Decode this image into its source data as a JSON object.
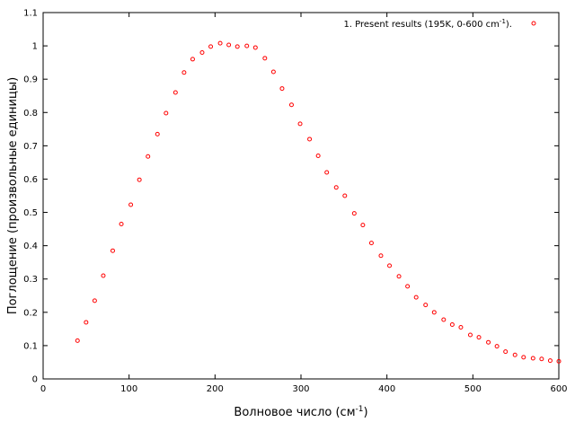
{
  "chart_data": {
    "type": "scatter",
    "title": "",
    "xlabel": "Волновое число (см",
    "xlabel_sup": "-1",
    "xlabel_close": ")",
    "ylabel": "Поглощение (произвольные единицы)",
    "xlim": [
      0,
      600
    ],
    "ylim": [
      0,
      1.1
    ],
    "xticks": [
      0,
      100,
      200,
      300,
      400,
      500,
      600
    ],
    "yticks": [
      0,
      0.1,
      0.2,
      0.3,
      0.4,
      0.5,
      0.6,
      0.7,
      0.8,
      0.9,
      1,
      1.1
    ],
    "grid": false,
    "legend_position": "top-right",
    "series": [
      {
        "name": "1. Present results (195K, 0-600 cm",
        "name_sup": "-1",
        "name_close": ").",
        "color": "#ff0000",
        "marker": "circle",
        "x": [
          40,
          50,
          60,
          70,
          81,
          91,
          102,
          112,
          122,
          133,
          143,
          154,
          164,
          174,
          185,
          195,
          206,
          216,
          226,
          237,
          247,
          258,
          268,
          278,
          289,
          299,
          310,
          320,
          330,
          341,
          351,
          362,
          372,
          382,
          393,
          403,
          414,
          424,
          434,
          445,
          455,
          466,
          476,
          486,
          497,
          507,
          518,
          528,
          538,
          549,
          559,
          570,
          580,
          590,
          600
        ],
        "y": [
          0.115,
          0.17,
          0.235,
          0.31,
          0.385,
          0.465,
          0.523,
          0.598,
          0.668,
          0.735,
          0.798,
          0.86,
          0.92,
          0.96,
          0.98,
          0.998,
          1.008,
          1.003,
          0.998,
          1.0,
          0.995,
          0.963,
          0.922,
          0.872,
          0.823,
          0.766,
          0.72,
          0.67,
          0.62,
          0.575,
          0.55,
          0.497,
          0.462,
          0.408,
          0.37,
          0.34,
          0.308,
          0.278,
          0.245,
          0.222,
          0.2,
          0.178,
          0.163,
          0.155,
          0.132,
          0.125,
          0.11,
          0.098,
          0.082,
          0.072,
          0.065,
          0.062,
          0.06,
          0.055,
          0.053
        ]
      }
    ]
  }
}
